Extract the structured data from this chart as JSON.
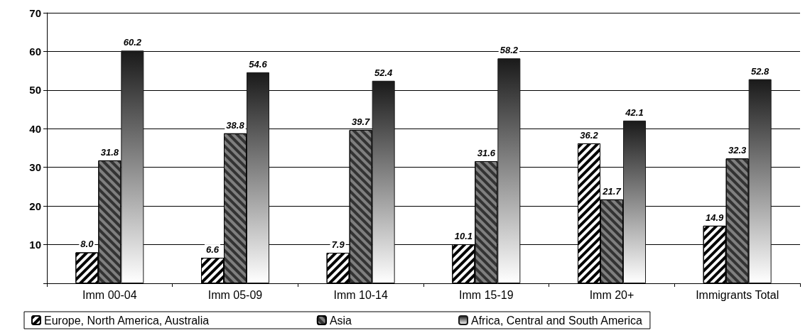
{
  "chart_data": {
    "type": "bar",
    "categories": [
      "Imm 00-04",
      "Imm 05-09",
      "Imm 10-14",
      "Imm 15-19",
      "Imm 20+",
      "Immigrants Total"
    ],
    "series": [
      {
        "name": "Europe, North America, Australia",
        "color": "#ffffff",
        "values": [
          8.0,
          6.6,
          7.9,
          10.1,
          36.2,
          14.9
        ],
        "value_labels": [
          "8.0",
          "6.6",
          "7.9",
          "10.1",
          "36.2",
          "14.9"
        ]
      },
      {
        "name": "Asia",
        "color": "#7f7f7f",
        "values": [
          31.8,
          38.8,
          39.7,
          31.6,
          21.7,
          32.3
        ],
        "value_labels": [
          "31.8",
          "38.8",
          "39.7",
          "31.6",
          "21.7",
          "32.3"
        ]
      },
      {
        "name": "Africa, Central and South America",
        "color": "#1a1a1a",
        "values": [
          60.2,
          54.6,
          52.4,
          58.2,
          42.1,
          52.8
        ],
        "value_labels": [
          "60.2",
          "54.6",
          "52.4",
          "58.2",
          "42.1",
          "52.8"
        ]
      }
    ],
    "ylim": [
      0,
      70
    ],
    "yticks": [
      {
        "value": 0,
        "label": null
      },
      10,
      20,
      30,
      40,
      50,
      60,
      70
    ],
    "grid": "y",
    "legend": "bottom"
  }
}
